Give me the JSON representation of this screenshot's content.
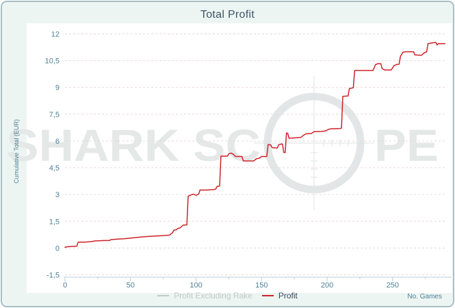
{
  "title": "Total Profit",
  "watermark": {
    "left_text": "SHARK SC",
    "right_text": "PE"
  },
  "legend": [
    {
      "label": "Profit Excluding Rake",
      "color": "#c3c8cb",
      "text_color": "#c3c8cb"
    },
    {
      "label": "Profit",
      "color": "#ce2128",
      "text_color": "#37495c"
    }
  ],
  "colors": {
    "card_border": "#a6c0c4",
    "card_background": "#edf5f2",
    "plot_background": "#ffffff",
    "title_text": "#3d5368",
    "tick_text": "#4d7f95",
    "grid": "#e9d9d9",
    "axis": "#b9ced4",
    "profit_line": "#ce2128",
    "watermark_text": "#e4e8e7",
    "watermark_ring": "#e2e6e6",
    "watermark_line": "#dde3e3"
  },
  "chart_data": {
    "type": "line",
    "title": "Total Profit",
    "xlabel": "No. Games",
    "ylabel": "Cumulative Total (EUR)",
    "xlim": [
      0,
      295
    ],
    "ylim": [
      -1.5,
      12
    ],
    "x_ticks": [
      0,
      50,
      100,
      150,
      200,
      250
    ],
    "x_minor_ticks": [
      25,
      75,
      125,
      175,
      225,
      275
    ],
    "y_ticks": [
      12,
      10.5,
      9,
      7.5,
      6,
      4.5,
      3,
      1.5,
      0,
      -1.5
    ],
    "y_tick_labels": [
      "12",
      "10,5",
      "9",
      "7,5",
      "6",
      "4,5",
      "3",
      "1,5",
      "0",
      "-1,5"
    ],
    "grid": true,
    "legend_position": "bottom",
    "series": [
      {
        "name": "Profit Excluding Rake",
        "color": "#c3c8cb",
        "visible": false,
        "points": []
      },
      {
        "name": "Profit",
        "color": "#ce2128",
        "visible": true,
        "points": [
          [
            0,
            0.05
          ],
          [
            3,
            0.08
          ],
          [
            9,
            0.1
          ],
          [
            10,
            0.33
          ],
          [
            15,
            0.33
          ],
          [
            20,
            0.36
          ],
          [
            23,
            0.4
          ],
          [
            30,
            0.42
          ],
          [
            34,
            0.42
          ],
          [
            35,
            0.47
          ],
          [
            40,
            0.5
          ],
          [
            46,
            0.53
          ],
          [
            52,
            0.57
          ],
          [
            58,
            0.62
          ],
          [
            64,
            0.65
          ],
          [
            70,
            0.68
          ],
          [
            76,
            0.7
          ],
          [
            80,
            0.73
          ],
          [
            81,
            0.8
          ],
          [
            82,
            0.85
          ],
          [
            83,
            1.0
          ],
          [
            85,
            1.02
          ],
          [
            86,
            1.1
          ],
          [
            88,
            1.13
          ],
          [
            90,
            1.28
          ],
          [
            93,
            1.3
          ],
          [
            94,
            2.9
          ],
          [
            96,
            2.97
          ],
          [
            98,
            3.02
          ],
          [
            100,
            2.95
          ],
          [
            102,
            3.02
          ],
          [
            103,
            3.25
          ],
          [
            108,
            3.25
          ],
          [
            113,
            3.27
          ],
          [
            115,
            3.3
          ],
          [
            116,
            3.45
          ],
          [
            118,
            3.47
          ],
          [
            119,
            5.15
          ],
          [
            124,
            5.15
          ],
          [
            125,
            5.28
          ],
          [
            127,
            5.32
          ],
          [
            129,
            5.22
          ],
          [
            130,
            5.13
          ],
          [
            135,
            5.13
          ],
          [
            136,
            4.88
          ],
          [
            144,
            4.88
          ],
          [
            146,
            5.0
          ],
          [
            148,
            5.03
          ],
          [
            150,
            5.13
          ],
          [
            154,
            5.13
          ],
          [
            155,
            5.8
          ],
          [
            157,
            5.78
          ],
          [
            158,
            5.63
          ],
          [
            162,
            5.6
          ],
          [
            163,
            5.78
          ],
          [
            165,
            5.83
          ],
          [
            166,
            5.82
          ],
          [
            167,
            5.35
          ],
          [
            168,
            5.35
          ],
          [
            169,
            6.45
          ],
          [
            170,
            6.42
          ],
          [
            171,
            6.15
          ],
          [
            175,
            6.17
          ],
          [
            180,
            6.2
          ],
          [
            182,
            6.32
          ],
          [
            184,
            6.4
          ],
          [
            188,
            6.42
          ],
          [
            190,
            6.52
          ],
          [
            196,
            6.53
          ],
          [
            199,
            6.57
          ],
          [
            201,
            6.65
          ],
          [
            203,
            6.68
          ],
          [
            210,
            6.7
          ],
          [
            211,
            6.72
          ],
          [
            212,
            8.5
          ],
          [
            216,
            8.52
          ],
          [
            217,
            8.93
          ],
          [
            220,
            8.98
          ],
          [
            221,
            9.95
          ],
          [
            235,
            9.95
          ],
          [
            237,
            10.28
          ],
          [
            239,
            10.33
          ],
          [
            241,
            10.33
          ],
          [
            242,
            10.05
          ],
          [
            244,
            9.98
          ],
          [
            249,
            9.98
          ],
          [
            251,
            10.22
          ],
          [
            253,
            10.28
          ],
          [
            255,
            10.3
          ],
          [
            256,
            10.75
          ],
          [
            258,
            10.98
          ],
          [
            260,
            11.0
          ],
          [
            266,
            11.0
          ],
          [
            267,
            10.82
          ],
          [
            272,
            10.8
          ],
          [
            274,
            10.93
          ],
          [
            276,
            11.0
          ],
          [
            277,
            11.45
          ],
          [
            281,
            11.5
          ],
          [
            283,
            11.52
          ],
          [
            284,
            11.38
          ],
          [
            285,
            11.45
          ],
          [
            290,
            11.45
          ]
        ]
      }
    ]
  }
}
